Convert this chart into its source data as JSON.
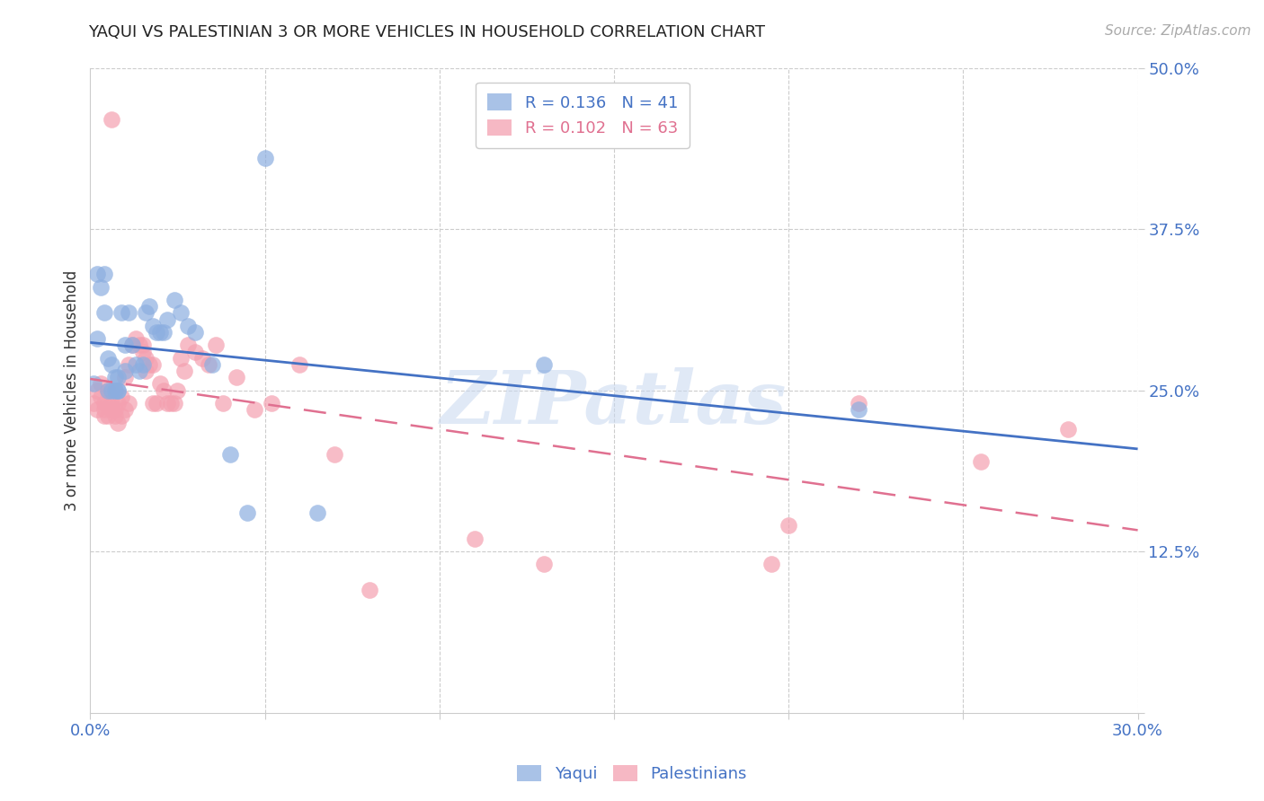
{
  "title": "YAQUI VS PALESTINIAN 3 OR MORE VEHICLES IN HOUSEHOLD CORRELATION CHART",
  "source": "Source: ZipAtlas.com",
  "ylabel": "3 or more Vehicles in Household",
  "xlim": [
    0.0,
    0.3
  ],
  "ylim": [
    0.0,
    0.5
  ],
  "xtick_positions": [
    0.0,
    0.05,
    0.1,
    0.15,
    0.2,
    0.25,
    0.3
  ],
  "xticklabels": [
    "0.0%",
    "",
    "",
    "",
    "",
    "",
    "30.0%"
  ],
  "ytick_positions": [
    0.0,
    0.125,
    0.25,
    0.375,
    0.5
  ],
  "yticklabels": [
    "",
    "12.5%",
    "25.0%",
    "37.5%",
    "50.0%"
  ],
  "blue_color": "#8caee0",
  "pink_color": "#f4a0b0",
  "blue_line_color": "#4472c4",
  "pink_line_color": "#e07090",
  "yaqui_R": 0.136,
  "yaqui_N": 41,
  "pal_R": 0.102,
  "pal_N": 63,
  "yaqui_x": [
    0.001,
    0.002,
    0.002,
    0.003,
    0.004,
    0.004,
    0.005,
    0.005,
    0.006,
    0.006,
    0.007,
    0.007,
    0.008,
    0.008,
    0.008,
    0.009,
    0.01,
    0.01,
    0.011,
    0.012,
    0.013,
    0.014,
    0.015,
    0.016,
    0.017,
    0.018,
    0.019,
    0.02,
    0.021,
    0.022,
    0.024,
    0.026,
    0.028,
    0.03,
    0.035,
    0.04,
    0.045,
    0.05,
    0.065,
    0.13,
    0.22
  ],
  "yaqui_y": [
    0.255,
    0.34,
    0.29,
    0.33,
    0.34,
    0.31,
    0.275,
    0.25,
    0.27,
    0.25,
    0.25,
    0.26,
    0.25,
    0.26,
    0.25,
    0.31,
    0.285,
    0.265,
    0.31,
    0.285,
    0.27,
    0.265,
    0.27,
    0.31,
    0.315,
    0.3,
    0.295,
    0.295,
    0.295,
    0.305,
    0.32,
    0.31,
    0.3,
    0.295,
    0.27,
    0.2,
    0.155,
    0.43,
    0.155,
    0.27,
    0.235
  ],
  "pal_x": [
    0.001,
    0.002,
    0.002,
    0.003,
    0.003,
    0.004,
    0.004,
    0.004,
    0.005,
    0.005,
    0.005,
    0.006,
    0.006,
    0.006,
    0.007,
    0.007,
    0.007,
    0.008,
    0.008,
    0.009,
    0.009,
    0.01,
    0.01,
    0.011,
    0.011,
    0.012,
    0.013,
    0.014,
    0.015,
    0.015,
    0.016,
    0.016,
    0.017,
    0.018,
    0.018,
    0.019,
    0.02,
    0.021,
    0.022,
    0.023,
    0.024,
    0.025,
    0.026,
    0.027,
    0.028,
    0.03,
    0.032,
    0.034,
    0.036,
    0.038,
    0.042,
    0.047,
    0.052,
    0.06,
    0.07,
    0.08,
    0.11,
    0.13,
    0.195,
    0.2,
    0.22,
    0.255,
    0.28
  ],
  "pal_y": [
    0.24,
    0.25,
    0.235,
    0.255,
    0.245,
    0.24,
    0.235,
    0.23,
    0.23,
    0.24,
    0.25,
    0.235,
    0.24,
    0.46,
    0.23,
    0.235,
    0.25,
    0.225,
    0.24,
    0.245,
    0.23,
    0.26,
    0.235,
    0.27,
    0.24,
    0.285,
    0.29,
    0.285,
    0.285,
    0.28,
    0.275,
    0.265,
    0.27,
    0.27,
    0.24,
    0.24,
    0.255,
    0.25,
    0.24,
    0.24,
    0.24,
    0.25,
    0.275,
    0.265,
    0.285,
    0.28,
    0.275,
    0.27,
    0.285,
    0.24,
    0.26,
    0.235,
    0.24,
    0.27,
    0.2,
    0.095,
    0.135,
    0.115,
    0.115,
    0.145,
    0.24,
    0.195,
    0.22
  ],
  "watermark": "ZIPatlas",
  "watermark_color": "#c8d8f0",
  "grid_color": "#cccccc",
  "spine_color": "#cccccc"
}
